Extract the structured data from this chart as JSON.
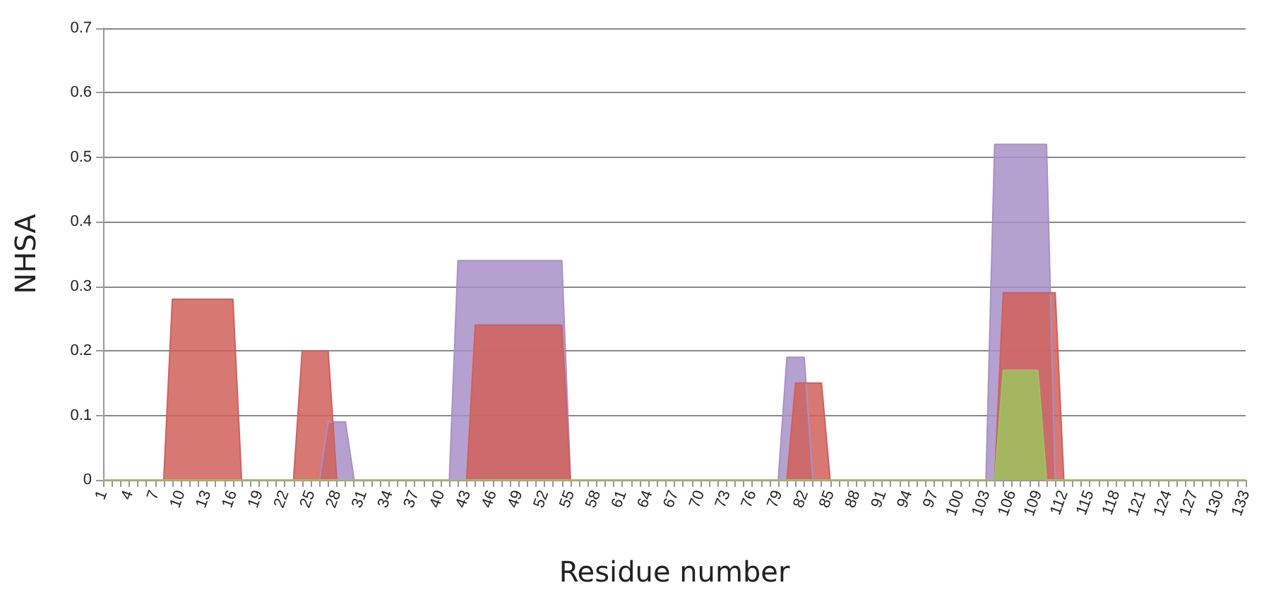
{
  "chart_data": {
    "type": "area",
    "xlabel": "Residue number",
    "ylabel": "NHSA",
    "ylim": [
      0,
      0.7
    ],
    "yticks": [
      0,
      0.1,
      0.2,
      0.3,
      0.4,
      0.5,
      0.6,
      0.7
    ],
    "grid": "y",
    "categories": [
      "1",
      null,
      null,
      "4",
      null,
      null,
      "7",
      null,
      null,
      "10",
      null,
      null,
      "13",
      null,
      null,
      "16",
      null,
      null,
      "19",
      null,
      null,
      "22",
      null,
      null,
      "25",
      null,
      null,
      "28",
      null,
      null,
      "31",
      null,
      null,
      "34",
      null,
      null,
      "37",
      null,
      null,
      "40",
      null,
      null,
      "43",
      null,
      null,
      "46",
      null,
      null,
      "49",
      null,
      null,
      "52",
      null,
      null,
      "55",
      null,
      null,
      "58",
      null,
      null,
      "61",
      null,
      null,
      "64",
      null,
      null,
      "67",
      null,
      null,
      "70",
      null,
      null,
      "73",
      null,
      null,
      "76",
      null,
      null,
      "79",
      null,
      null,
      "82",
      null,
      null,
      "85",
      null,
      null,
      "88",
      null,
      null,
      "91",
      null,
      null,
      "94",
      null,
      null,
      "97",
      null,
      null,
      "100",
      null,
      null,
      "103",
      null,
      null,
      "106",
      null,
      null,
      "109",
      null,
      null,
      "112",
      null,
      null,
      "115",
      null,
      null,
      "118",
      null,
      null,
      "121",
      null,
      null,
      "124",
      null,
      null,
      "127",
      null,
      null,
      "130",
      null,
      null,
      "133"
    ],
    "series": [
      {
        "color": "#a890c8",
        "values": [
          0,
          0,
          0,
          0,
          0,
          0,
          0,
          0,
          0,
          0,
          0,
          0,
          0,
          0,
          0,
          0,
          0,
          0,
          0,
          0,
          0,
          0,
          0,
          0,
          0,
          0,
          0.09,
          0.09,
          0.09,
          0,
          0,
          0,
          0,
          0,
          0,
          0,
          0,
          0,
          0,
          0,
          0,
          0.34,
          0.34,
          0.34,
          0.34,
          0.34,
          0.34,
          0.34,
          0.34,
          0.34,
          0.34,
          0.34,
          0.34,
          0.34,
          0,
          0,
          0,
          0,
          0,
          0,
          0,
          0,
          0,
          0,
          0,
          0,
          0,
          0,
          0,
          0,
          0,
          0,
          0,
          0,
          0,
          0,
          0,
          0,
          0,
          0.19,
          0.19,
          0.19,
          0,
          0,
          0,
          0,
          0,
          0,
          0,
          0,
          0,
          0,
          0,
          0,
          0,
          0,
          0,
          0,
          0,
          0,
          0,
          0,
          0,
          0.52,
          0.52,
          0.52,
          0.52,
          0.52,
          0.52,
          0.52,
          0,
          0,
          0,
          0,
          0,
          0,
          0,
          0,
          0,
          0,
          0,
          0,
          0,
          0,
          0,
          0,
          0,
          0,
          0,
          0,
          0,
          0,
          0
        ]
      },
      {
        "color": "#d0605a",
        "values": [
          0,
          0,
          0,
          0,
          0,
          0,
          0,
          0,
          0.28,
          0.28,
          0.28,
          0.28,
          0.28,
          0.28,
          0.28,
          0.28,
          0,
          0,
          0,
          0,
          0,
          0,
          0,
          0.2,
          0.2,
          0.2,
          0.2,
          0,
          0,
          0,
          0,
          0,
          0,
          0,
          0,
          0,
          0,
          0,
          0,
          0,
          0,
          0,
          0,
          0.24,
          0.24,
          0.24,
          0.24,
          0.24,
          0.24,
          0.24,
          0.24,
          0.24,
          0.24,
          0.24,
          0,
          0,
          0,
          0,
          0,
          0,
          0,
          0,
          0,
          0,
          0,
          0,
          0,
          0,
          0,
          0,
          0,
          0,
          0,
          0,
          0,
          0,
          0,
          0,
          0,
          0,
          0.15,
          0.15,
          0.15,
          0.15,
          0,
          0,
          0,
          0,
          0,
          0,
          0,
          0,
          0,
          0,
          0,
          0,
          0,
          0,
          0,
          0,
          0,
          0,
          0,
          0,
          0.29,
          0.29,
          0.29,
          0.29,
          0.29,
          0.29,
          0.29,
          0,
          0,
          0,
          0,
          0,
          0,
          0,
          0,
          0,
          0,
          0,
          0,
          0,
          0,
          0,
          0,
          0,
          0,
          0,
          0,
          0,
          0
        ]
      },
      {
        "color": "#9cc45e",
        "values": [
          0,
          0,
          0,
          0,
          0,
          0,
          0,
          0,
          0,
          0,
          0,
          0,
          0,
          0,
          0,
          0,
          0,
          0,
          0,
          0,
          0,
          0,
          0,
          0,
          0,
          0,
          0,
          0,
          0,
          0,
          0,
          0,
          0,
          0,
          0,
          0,
          0,
          0,
          0,
          0,
          0,
          0,
          0,
          0,
          0,
          0,
          0,
          0,
          0,
          0,
          0,
          0,
          0,
          0,
          0,
          0,
          0,
          0,
          0,
          0,
          0,
          0,
          0,
          0,
          0,
          0,
          0,
          0,
          0,
          0,
          0,
          0,
          0,
          0,
          0,
          0,
          0,
          0,
          0,
          0,
          0,
          0,
          0,
          0,
          0,
          0,
          0,
          0,
          0,
          0,
          0,
          0,
          0,
          0,
          0,
          0,
          0,
          0,
          0,
          0,
          0,
          0,
          0,
          0,
          0.17,
          0.17,
          0.17,
          0.17,
          0.17,
          0,
          0,
          0,
          0,
          0,
          0,
          0,
          0,
          0,
          0,
          0,
          0,
          0,
          0,
          0,
          0,
          0,
          0,
          0,
          0,
          0,
          0,
          0,
          0
        ]
      }
    ]
  }
}
